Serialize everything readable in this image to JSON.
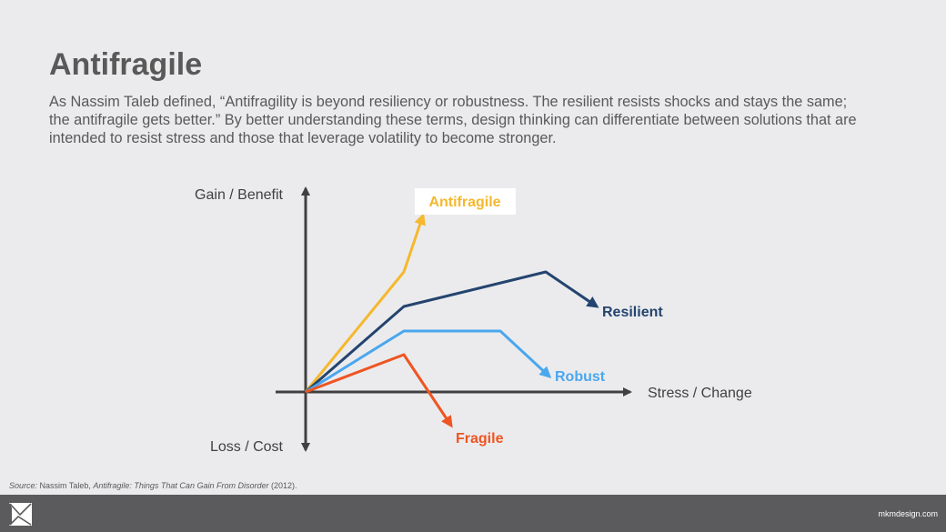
{
  "slide": {
    "title": "Antifragile",
    "description": "As Nassim Taleb defined, “Antifragility is beyond resiliency or robustness. The resilient resists shocks and stays the same; the antifragile gets better.” By better understanding these terms, design thinking can differentiate between solutions that are intended to resist stress and those that leverage volatility to become stronger."
  },
  "diagram": {
    "axes": {
      "y_positive_label": "Gain / Benefit",
      "y_negative_label": "Loss / Cost",
      "x_label": "Stress / Change"
    },
    "series": [
      {
        "key": "antifragile",
        "label": "Antifragile",
        "color": "#f5b82e"
      },
      {
        "key": "resilient",
        "label": "Resilient",
        "color": "#24446f"
      },
      {
        "key": "robust",
        "label": "Robust",
        "color": "#4aa7ee"
      },
      {
        "key": "fragile",
        "label": "Fragile",
        "color": "#ee5522"
      }
    ]
  },
  "source": {
    "prefix": "Source:",
    "author": " Nassim Taleb, ",
    "work": "Antifragile: Things That Can Gain From Disorder",
    "year": " (2012)."
  },
  "footer": {
    "logo_icon": "mkm-logo-icon",
    "website": "mkmdesign.com"
  }
}
